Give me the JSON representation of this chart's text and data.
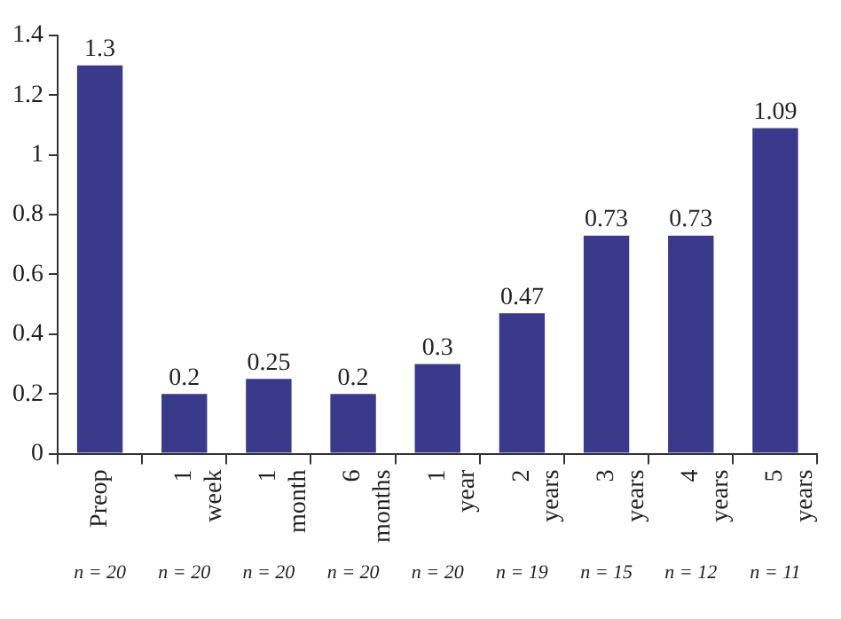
{
  "chart_data": {
    "type": "bar",
    "categories": [
      "Preop",
      "1 week",
      "1 month",
      "6 months",
      "1 year",
      "2 years",
      "3 years",
      "4 years",
      "5 years"
    ],
    "values": [
      1.3,
      0.2,
      0.25,
      0.2,
      0.3,
      0.47,
      0.73,
      0.73,
      1.09
    ],
    "color": "#3a3a8c",
    "ylim": [
      0,
      1.4
    ],
    "yticks": [
      0,
      0.2,
      0.4,
      0.6,
      0.8,
      1,
      1.2,
      1.4
    ],
    "grid": false,
    "legend": false,
    "data_labels": true,
    "annotations": [
      "n = 20",
      "n = 20",
      "n = 20",
      "n = 20",
      "n = 20",
      "n = 19",
      "n = 15",
      "n = 12",
      "n = 11"
    ]
  }
}
